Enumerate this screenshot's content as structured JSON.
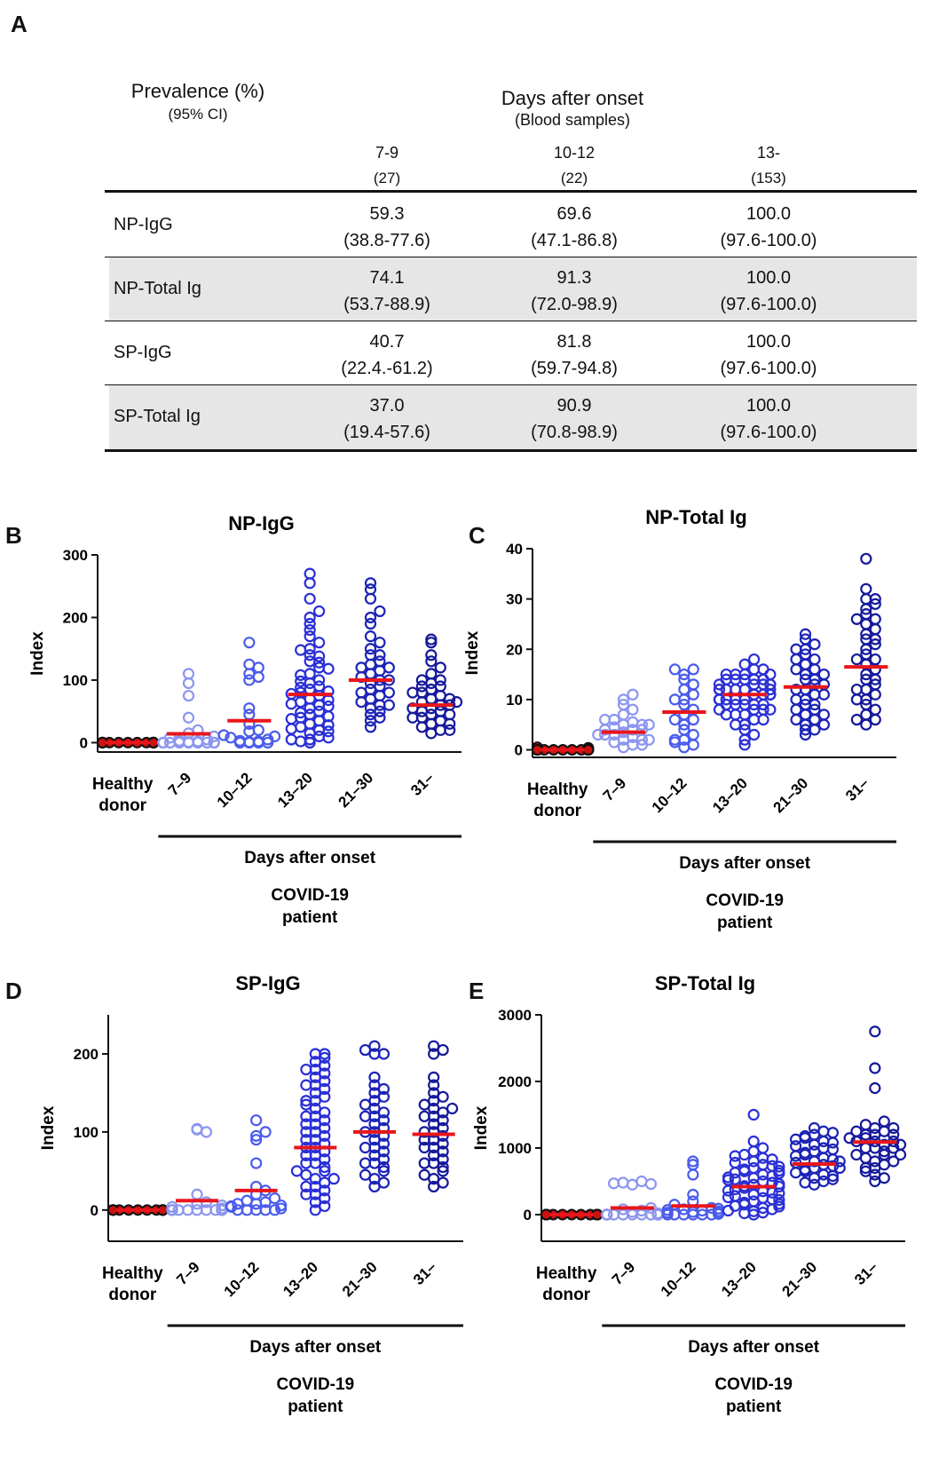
{
  "panel_labels": {
    "A": "A",
    "B": "B",
    "C": "C",
    "D": "D",
    "E": "E"
  },
  "table": {
    "prevalence_title": "Prevalence (%)",
    "prevalence_sub": "(95% CI)",
    "days_title": "Days after onset",
    "days_sub": "(Blood samples)",
    "columns": [
      {
        "range": "7-9",
        "n": "(27)"
      },
      {
        "range": "10-12",
        "n": "(22)"
      },
      {
        "range": "13-",
        "n": "(153)"
      }
    ],
    "rows": [
      {
        "label": "NP-IgG",
        "cells": [
          [
            "59.3",
            "(38.8-77.6)"
          ],
          [
            "69.6",
            "(47.1-86.8)"
          ],
          [
            "100.0",
            "(97.6-100.0)"
          ]
        ]
      },
      {
        "label": "NP-Total Ig",
        "cells": [
          [
            "74.1",
            "(53.7-88.9)"
          ],
          [
            "91.3",
            "(72.0-98.9)"
          ],
          [
            "100.0",
            "(97.6-100.0)"
          ]
        ]
      },
      {
        "label": "SP-IgG",
        "cells": [
          [
            "40.7",
            "(22.4.-61.2)"
          ],
          [
            "81.8",
            "(59.7-94.8)"
          ],
          [
            "100.0",
            "(97.6-100.0)"
          ]
        ]
      },
      {
        "label": "SP-Total Ig",
        "cells": [
          [
            "37.0",
            "(19.4-57.6)"
          ],
          [
            "90.9",
            "(70.8-98.9)"
          ],
          [
            "100.0",
            "(97.6-100.0)"
          ]
        ]
      }
    ]
  },
  "chart_data": [
    {
      "id": "B",
      "type": "scatter",
      "title": "NP-IgG",
      "ylabel": "Index",
      "ylim": [
        -15,
        300
      ],
      "yticks": [
        0,
        100,
        200,
        300
      ],
      "categories": [
        "Healthy donor",
        "7–9",
        "10–12",
        "13–20",
        "21–30",
        "31–"
      ],
      "xlabel": "Days after onset",
      "group_label": "COVID-19 patient",
      "medians": [
        0,
        14,
        35,
        77,
        100,
        60
      ],
      "series": [
        {
          "name": "Healthy donor",
          "values": [
            0,
            0,
            0,
            0,
            0,
            0,
            0,
            0,
            0,
            0,
            0,
            0,
            0,
            0,
            0,
            0,
            0,
            0,
            0,
            0
          ]
        },
        {
          "name": "7–9",
          "values": [
            0,
            0,
            0,
            0,
            0,
            0,
            0,
            0,
            0,
            0,
            0,
            0,
            0,
            0,
            0,
            1,
            2,
            3,
            5,
            8,
            10,
            15,
            20,
            40,
            75,
            95,
            110
          ]
        },
        {
          "name": "10–12",
          "values": [
            0,
            0,
            0,
            0,
            1,
            2,
            3,
            5,
            8,
            10,
            12,
            18,
            20,
            30,
            45,
            55,
            100,
            105,
            110,
            120,
            125,
            160
          ]
        },
        {
          "name": "13–20",
          "values": [
            0,
            5,
            10,
            15,
            20,
            25,
            30,
            35,
            40,
            45,
            50,
            55,
            60,
            65,
            70,
            75,
            80,
            85,
            90,
            95,
            100,
            110,
            120,
            130,
            140,
            150,
            160,
            170,
            180,
            190,
            200,
            210,
            230,
            255,
            270,
            2,
            8,
            18,
            28,
            38,
            48,
            58,
            68,
            78,
            88,
            98,
            108,
            118,
            128,
            138,
            148,
            5,
            22,
            42,
            62,
            82
          ]
        },
        {
          "name": "21–30",
          "values": [
            25,
            35,
            45,
            50,
            55,
            60,
            65,
            70,
            75,
            80,
            85,
            90,
            95,
            100,
            105,
            110,
            115,
            120,
            125,
            130,
            140,
            150,
            160,
            170,
            190,
            200,
            210,
            230,
            245,
            255,
            40,
            60,
            80,
            100,
            120,
            140
          ]
        },
        {
          "name": "31–",
          "values": [
            15,
            20,
            25,
            30,
            35,
            40,
            45,
            50,
            55,
            60,
            65,
            70,
            75,
            80,
            85,
            90,
            95,
            100,
            110,
            120,
            130,
            140,
            160,
            165,
            20,
            30,
            40,
            50,
            60,
            70,
            80,
            90,
            100,
            45,
            55,
            65
          ]
        }
      ]
    },
    {
      "id": "C",
      "type": "scatter",
      "title": "NP-Total Ig",
      "ylabel": "Index",
      "ylim": [
        -1.5,
        40
      ],
      "yticks": [
        0,
        10,
        20,
        30,
        40
      ],
      "categories": [
        "Healthy donor",
        "7–9",
        "10–12",
        "13–20",
        "21–30",
        "31–"
      ],
      "xlabel": "Days after onset",
      "group_label": "COVID-19 patient",
      "medians": [
        0,
        3.5,
        7.5,
        11,
        12.5,
        16.5
      ],
      "series": [
        {
          "name": "Healthy donor",
          "values": [
            0,
            0,
            0,
            0,
            0,
            0,
            0,
            0,
            0,
            0,
            0,
            0.2,
            0.5,
            0.4,
            0,
            0,
            0,
            0,
            0,
            0
          ]
        },
        {
          "name": "7–9",
          "values": [
            0.5,
            1,
            1.5,
            2,
            2.5,
            3,
            3.5,
            4,
            4.5,
            5,
            5.5,
            6,
            7,
            8,
            9,
            10,
            11,
            1,
            2,
            3,
            4,
            5,
            6,
            2,
            3,
            4,
            5
          ]
        },
        {
          "name": "10–12",
          "values": [
            0.5,
            1,
            1.5,
            2,
            3,
            4,
            5,
            6,
            7,
            8,
            9,
            10,
            11,
            12,
            13,
            14,
            15,
            16,
            16,
            2,
            6,
            10
          ]
        },
        {
          "name": "13–20",
          "values": [
            1,
            2,
            3,
            4,
            5,
            6,
            7,
            8,
            9,
            10,
            11,
            12,
            13,
            14,
            15,
            16,
            17,
            18,
            5,
            6,
            7,
            8,
            9,
            10,
            11,
            12,
            13,
            14,
            15,
            16,
            7,
            8,
            9,
            10,
            11,
            12,
            13,
            14,
            15,
            10,
            11,
            12,
            13,
            14,
            9,
            10,
            11,
            12,
            8,
            9,
            10,
            11,
            12,
            13,
            14,
            15
          ]
        },
        {
          "name": "21–30",
          "values": [
            3,
            4,
            5,
            6,
            7,
            8,
            9,
            10,
            11,
            12,
            13,
            14,
            15,
            16,
            17,
            18,
            19,
            20,
            21,
            22,
            23,
            4,
            6,
            8,
            10,
            12,
            14,
            16,
            18,
            20,
            5,
            7,
            9,
            11,
            13,
            15
          ]
        },
        {
          "name": "31–",
          "values": [
            5,
            6,
            7,
            8,
            9,
            10,
            11,
            12,
            13,
            14,
            15,
            16,
            17,
            18,
            19,
            20,
            21,
            22,
            23,
            24,
            25,
            26,
            27,
            28,
            29,
            30,
            32,
            38,
            6,
            10,
            14,
            18,
            22,
            26,
            30,
            12
          ]
        }
      ]
    },
    {
      "id": "D",
      "type": "scatter",
      "title": "SP-IgG",
      "ylabel": "Index",
      "ylim": [
        -40,
        250
      ],
      "yticks": [
        0,
        100,
        200
      ],
      "categories": [
        "Healthy donor",
        "7–9",
        "10–12",
        "13–20",
        "21–30",
        "31–"
      ],
      "xlabel": "Days after onset",
      "group_label": "COVID-19 patient",
      "medians": [
        0,
        12,
        25,
        80,
        100,
        97
      ],
      "series": [
        {
          "name": "Healthy donor",
          "values": [
            0,
            0,
            0,
            0,
            0,
            0,
            0,
            0,
            0,
            0,
            0,
            0,
            0,
            0,
            0,
            0,
            0,
            0,
            0,
            0
          ]
        },
        {
          "name": "7–9",
          "values": [
            0,
            0,
            0,
            0,
            0,
            0,
            0,
            0,
            0,
            0,
            0,
            0,
            0,
            0,
            0,
            2,
            4,
            6,
            8,
            10,
            20,
            103,
            100,
            104,
            0,
            0,
            0
          ]
        },
        {
          "name": "10–12",
          "values": [
            0,
            0,
            0,
            0,
            0,
            2,
            4,
            6,
            8,
            10,
            12,
            15,
            20,
            25,
            30,
            60,
            90,
            95,
            100,
            115,
            5,
            8
          ]
        },
        {
          "name": "13–20",
          "values": [
            0,
            10,
            20,
            30,
            40,
            50,
            60,
            70,
            80,
            90,
            100,
            110,
            120,
            130,
            140,
            150,
            160,
            170,
            180,
            190,
            200,
            5,
            15,
            25,
            35,
            45,
            55,
            65,
            75,
            85,
            95,
            105,
            115,
            125,
            135,
            145,
            155,
            165,
            175,
            185,
            195,
            20,
            40,
            60,
            80,
            100,
            120,
            140,
            160,
            180,
            200,
            30,
            50,
            70,
            90,
            110
          ]
        },
        {
          "name": "21–30",
          "values": [
            30,
            40,
            50,
            60,
            70,
            80,
            90,
            100,
            110,
            120,
            130,
            140,
            150,
            160,
            170,
            200,
            210,
            35,
            45,
            55,
            65,
            75,
            85,
            95,
            105,
            115,
            125,
            135,
            145,
            155,
            60,
            80,
            100,
            120,
            200,
            205
          ]
        },
        {
          "name": "31–",
          "values": [
            30,
            40,
            50,
            60,
            70,
            80,
            90,
            100,
            110,
            120,
            130,
            140,
            150,
            160,
            170,
            200,
            205,
            210,
            35,
            45,
            55,
            65,
            75,
            85,
            95,
            105,
            115,
            125,
            135,
            145,
            60,
            80,
            100,
            120,
            130,
            90
          ]
        }
      ]
    },
    {
      "id": "E",
      "type": "scatter",
      "title": "SP-Total Ig",
      "ylabel": "Index",
      "ylim": [
        -400,
        3000
      ],
      "yticks": [
        0,
        1000,
        2000,
        3000
      ],
      "categories": [
        "Healthy donor",
        "7–9",
        "10–12",
        "13–20",
        "21–30",
        "31–"
      ],
      "xlabel": "Days after onset",
      "group_label": "COVID-19 patient",
      "medians": [
        0,
        100,
        130,
        420,
        760,
        1090
      ],
      "series": [
        {
          "name": "Healthy donor",
          "values": [
            0,
            0,
            0,
            0,
            0,
            0,
            0,
            0,
            0,
            0,
            0,
            0,
            0,
            0,
            0,
            0,
            0,
            0,
            0,
            0
          ]
        },
        {
          "name": "7–9",
          "values": [
            0,
            0,
            0,
            0,
            0,
            0,
            0,
            0,
            0,
            0,
            0,
            0,
            0,
            0,
            0,
            20,
            40,
            60,
            80,
            100,
            450,
            500,
            480,
            460,
            470,
            0,
            0
          ]
        },
        {
          "name": "10–12",
          "values": [
            0,
            0,
            0,
            0,
            0,
            20,
            40,
            60,
            80,
            100,
            150,
            200,
            300,
            600,
            800,
            750,
            0,
            10,
            30,
            50,
            70,
            90
          ]
        },
        {
          "name": "13–20",
          "values": [
            0,
            50,
            100,
            150,
            200,
            250,
            300,
            350,
            400,
            450,
            500,
            550,
            600,
            650,
            700,
            750,
            800,
            850,
            900,
            950,
            1000,
            1100,
            1500,
            30,
            80,
            130,
            180,
            230,
            280,
            330,
            380,
            430,
            480,
            530,
            580,
            630,
            680,
            730,
            780,
            830,
            880,
            120,
            220,
            320,
            420,
            520,
            620,
            720,
            20,
            60,
            160,
            260,
            360,
            460,
            560,
            660
          ]
        },
        {
          "name": "21–30",
          "values": [
            450,
            500,
            550,
            600,
            650,
            700,
            750,
            800,
            850,
            900,
            950,
            1000,
            1050,
            1100,
            1150,
            1200,
            1250,
            1300,
            480,
            530,
            580,
            630,
            680,
            730,
            780,
            830,
            880,
            930,
            980,
            1030,
            1080,
            1130,
            1180,
            1230,
            700,
            800
          ]
        },
        {
          "name": "31–",
          "values": [
            500,
            600,
            700,
            800,
            900,
            1000,
            1100,
            1200,
            1300,
            1400,
            1900,
            2200,
            2750,
            550,
            650,
            750,
            850,
            950,
            1050,
            1150,
            1250,
            1350,
            700,
            800,
            900,
            1000,
            1100,
            1200,
            1300,
            900,
            1000,
            1100,
            1200,
            1050,
            1150,
            1250
          ]
        }
      ]
    }
  ]
}
